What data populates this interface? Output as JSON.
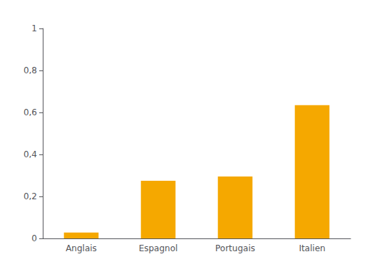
{
  "chart_data": {
    "type": "bar",
    "categories": [
      "Anglais",
      "Espagnol",
      "Portugais",
      "Italien"
    ],
    "values": [
      0.028,
      0.275,
      0.295,
      0.635
    ],
    "color": "#F5A800",
    "ylim": [
      0,
      1.0
    ],
    "yticks": [
      0,
      {
        "value": 0.2,
        "label": "0,2"
      },
      {
        "value": 0.4,
        "label": "0,4"
      },
      {
        "value": 0.6,
        "label": "0,6"
      },
      {
        "value": 0.8,
        "label": "0,8"
      },
      1
    ],
    "grid": false
  }
}
